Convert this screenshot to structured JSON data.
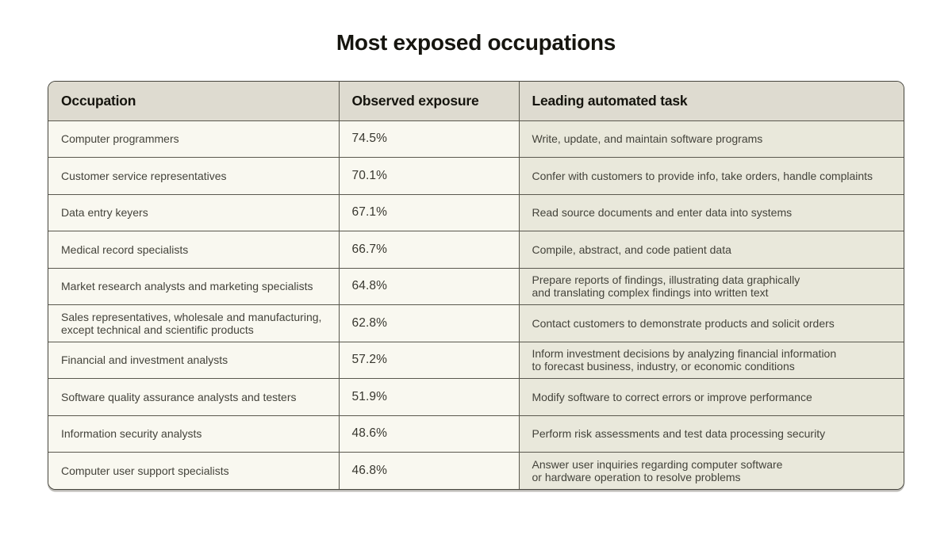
{
  "page": {
    "title": "Most exposed occupations"
  },
  "colors": {
    "page_background": "#ffffff",
    "header_background": "#dedbd0",
    "cell_background": "#f9f8f0",
    "task_cell_background": "#e9e8db",
    "border": "#5a584e",
    "title_text": "#16150f",
    "cell_text": "#44433b"
  },
  "chart_data": {
    "type": "table",
    "title": "Most exposed occupations",
    "columns": [
      "Occupation",
      "Observed exposure",
      "Leading automated task"
    ],
    "rows": [
      [
        "Computer programmers",
        "74.5%",
        "Write, update, and maintain software programs"
      ],
      [
        "Customer service representatives",
        "70.1%",
        "Confer with customers to provide info, take orders, handle complaints"
      ],
      [
        "Data entry keyers",
        "67.1%",
        "Read source documents and enter data into systems"
      ],
      [
        "Medical record specialists",
        "66.7%",
        "Compile, abstract, and code patient data"
      ],
      [
        "Market research analysts and marketing specialists",
        "64.8%",
        "Prepare reports of findings, illustrating data graphically\nand translating complex findings into written text"
      ],
      [
        "Sales representatives, wholesale and manufacturing,\nexcept technical and scientific products",
        "62.8%",
        "Contact customers to demonstrate products and solicit orders"
      ],
      [
        "Financial and investment analysts",
        "57.2%",
        "Inform investment decisions by analyzing financial information\nto forecast business, industry, or economic conditions"
      ],
      [
        "Software quality assurance analysts and testers",
        "51.9%",
        "Modify software to correct errors or improve performance"
      ],
      [
        "Information security analysts",
        "48.6%",
        "Perform risk assessments and test data processing security"
      ],
      [
        "Computer user support specialists",
        "46.8%",
        "Answer user inquiries regarding computer software\nor hardware operation to resolve problems"
      ]
    ]
  }
}
